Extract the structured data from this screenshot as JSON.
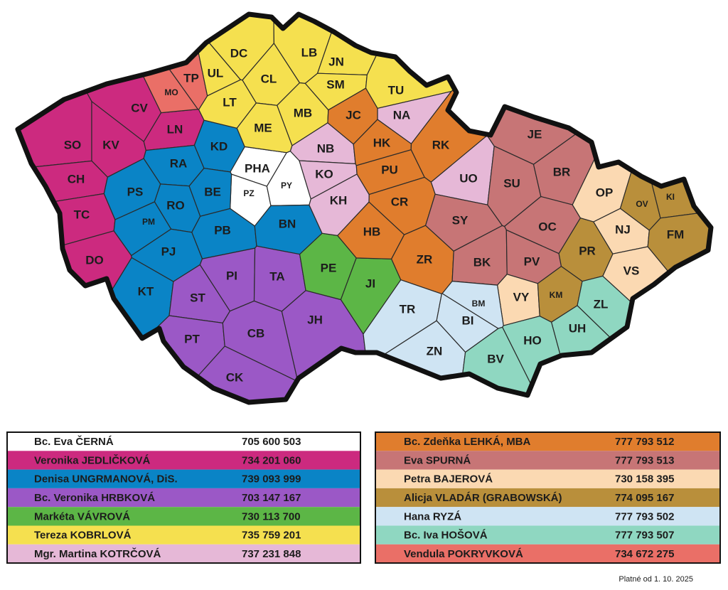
{
  "regions": [
    {
      "name": "Bc. Eva ČERNÁ",
      "phone": "705 600 503",
      "color": "#ffffff",
      "districts": [
        "PHA",
        "PZ",
        "PY"
      ]
    },
    {
      "name": "Veronika JEDLIČKOVÁ",
      "phone": "734 201 060",
      "color": "#cc2a7f",
      "districts": [
        "CV",
        "SO",
        "KV",
        "CH",
        "TC",
        "DO",
        "LN"
      ]
    },
    {
      "name": "Denisa UNGRMANOVÁ, DiS.",
      "phone": "739 093 999",
      "color": "#0a84c6",
      "districts": [
        "KD",
        "RA",
        "PS",
        "RO",
        "BE",
        "PM",
        "PB",
        "PJ",
        "BN",
        "KT"
      ]
    },
    {
      "name": "Bc. Veronika HRBKOVÁ",
      "phone": "703 147 167",
      "color": "#9b58c6",
      "districts": [
        "PI",
        "TA",
        "ST",
        "PT",
        "CB",
        "CK",
        "JH"
      ]
    },
    {
      "name": "Markéta VÁVROVÁ",
      "phone": "730 113 700",
      "color": "#5cb646",
      "districts": [
        "PE",
        "JI"
      ]
    },
    {
      "name": "Tereza KOBRLOVÁ",
      "phone": "735 759 201",
      "color": "#f5e04f",
      "districts": [
        "DC",
        "UL",
        "LT",
        "CL",
        "LB",
        "JN",
        "SM",
        "MB",
        "ME",
        "TU"
      ]
    },
    {
      "name": "Mgr. Martina KOTRČOVÁ",
      "phone": "737 231 848",
      "color": "#e6b8d7",
      "districts": [
        "NA",
        "NB",
        "KO",
        "KH",
        "UO"
      ]
    },
    {
      "name": "Bc. Zdeňka LEHKÁ, MBA",
      "phone": "777 793 512",
      "color": "#e07d2d",
      "districts": [
        "JC",
        "HK",
        "RK",
        "PU",
        "CR",
        "HB",
        "ZR"
      ]
    },
    {
      "name": "Eva SPURNÁ",
      "phone": "777 793 513",
      "color": "#c77576",
      "districts": [
        "JE",
        "SU",
        "BR",
        "SY",
        "OC",
        "BK",
        "PV"
      ]
    },
    {
      "name": "Petra BAJEROVÁ",
      "phone": "730 158 395",
      "color": "#fbd9b2",
      "districts": [
        "OP",
        "NJ",
        "VS",
        "VY"
      ]
    },
    {
      "name": "Alicja VLADÁR (GRABOWSKÁ)",
      "phone": "774 095 167",
      "color": "#b98f3b",
      "districts": [
        "OV",
        "KI",
        "FM",
        "PR",
        "KM"
      ]
    },
    {
      "name": "Hana RYZÁ",
      "phone": "777 793 502",
      "color": "#cfe4f3",
      "districts": [
        "TR",
        "BI",
        "BM",
        "ZN"
      ]
    },
    {
      "name": "Bc. Iva HOŠOVÁ",
      "phone": "777 793 507",
      "color": "#8fd7c1",
      "districts": [
        "ZL",
        "UH",
        "HO",
        "BV"
      ]
    },
    {
      "name": "Vendula POKRYVKOVÁ",
      "phone": "734 672 275",
      "color": "#ea6f67",
      "districts": [
        "TP",
        "MO"
      ]
    }
  ],
  "footer": "Platné od 1. 10. 2025"
}
